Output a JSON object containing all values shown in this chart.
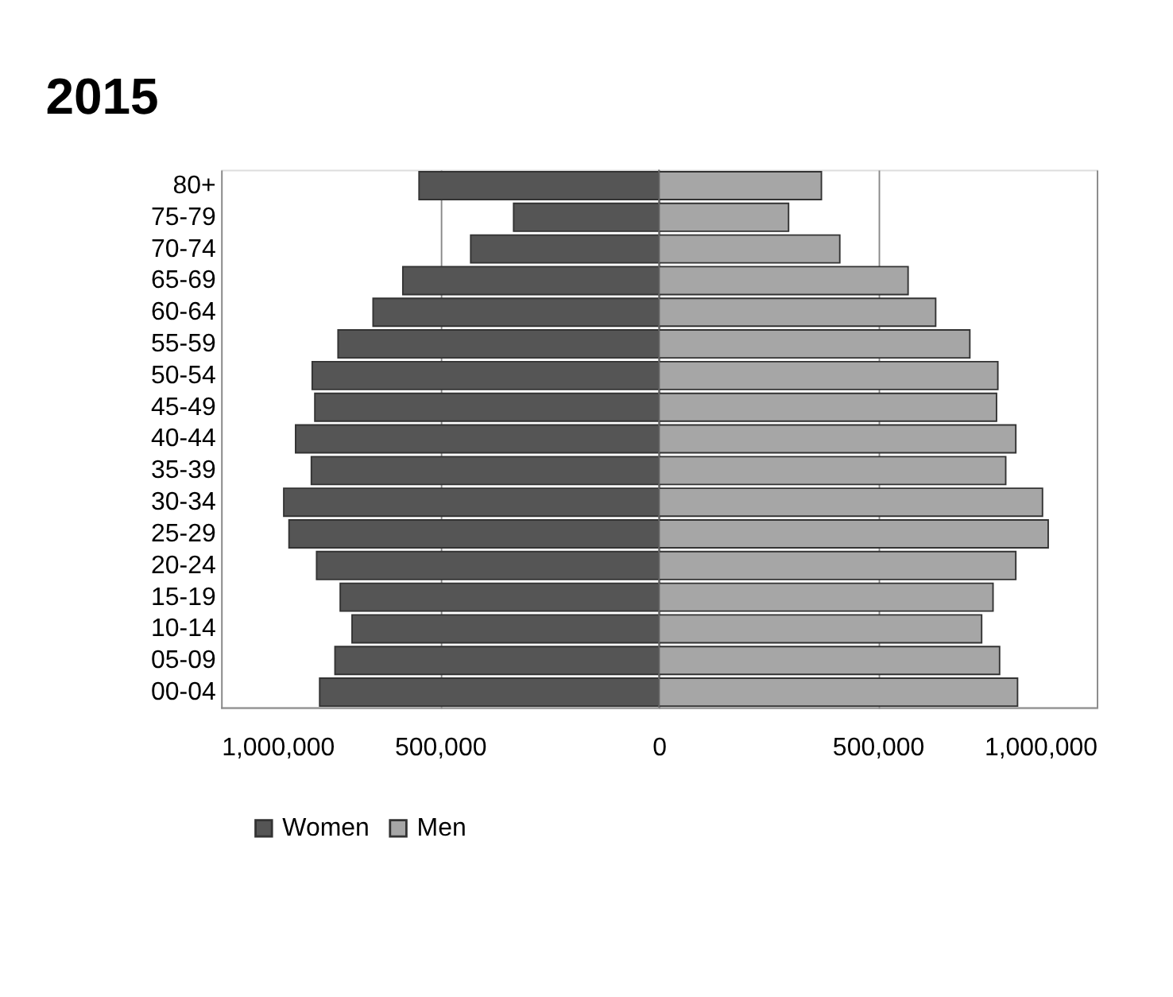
{
  "chart_data": {
    "type": "bar",
    "orientation": "horizontal",
    "title": "2015",
    "categories": [
      "80+",
      "75-79",
      "70-74",
      "65-69",
      "60-64",
      "55-59",
      "50-54",
      "45-49",
      "40-44",
      "35-39",
      "30-34",
      "25-29",
      "20-24",
      "15-19",
      "10-14",
      "05-09",
      "00-04"
    ],
    "series": [
      {
        "name": "Women",
        "color": "#555555",
        "values": [
          -548000,
          -332000,
          -430000,
          -585000,
          -653000,
          -733000,
          -792000,
          -786000,
          -830000,
          -794000,
          -857000,
          -845000,
          -782000,
          -728000,
          -701000,
          -740000,
          -775000
        ]
      },
      {
        "name": "Men",
        "color": "#a6a6a6",
        "values": [
          371000,
          296000,
          413000,
          569000,
          632000,
          710000,
          774000,
          771000,
          815000,
          792000,
          876000,
          889000,
          815000,
          763000,
          737000,
          778000,
          819000
        ]
      }
    ],
    "xlim": [
      -1000000,
      1000000
    ],
    "xticks": [
      {
        "value": -1000000,
        "label": "1,000,000"
      },
      {
        "value": -500000,
        "label": "500,000"
      },
      0,
      {
        "value": 500000,
        "label": "500,000"
      },
      {
        "value": 1000000,
        "label": "1,000,000"
      }
    ],
    "stacked": true,
    "grid": "x",
    "legend": "bottom"
  }
}
